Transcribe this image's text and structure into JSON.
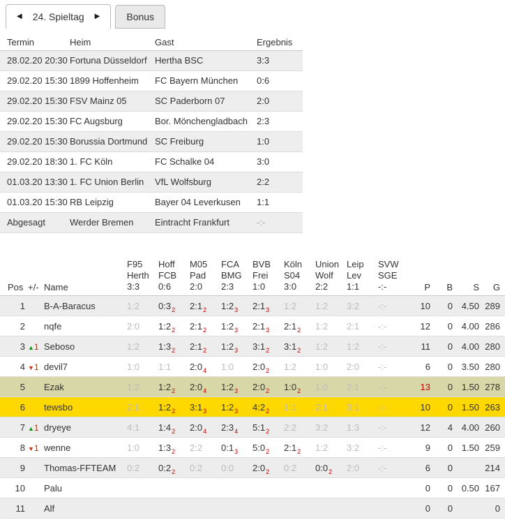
{
  "tab_bar": {
    "matchday_tab": {
      "label": "24. Spieltag",
      "prev_icon": "◀",
      "next_icon": "▶"
    },
    "bonus_tab": {
      "label": "Bonus"
    }
  },
  "fixtures": {
    "headers": {
      "termin": "Termin",
      "heim": "Heim",
      "gast": "Gast",
      "ergebnis": "Ergebnis"
    },
    "rows": [
      {
        "termin": "28.02.20 20:30",
        "heim": "Fortuna Düsseldorf",
        "gast": "Hertha BSC",
        "ergebnis": "3:3",
        "muted": ""
      },
      {
        "termin": "29.02.20 15:30",
        "heim": "1899 Hoffenheim",
        "gast": "FC Bayern München",
        "ergebnis": "0:6",
        "muted": ""
      },
      {
        "termin": "29.02.20 15:30",
        "heim": "FSV Mainz 05",
        "gast": "SC Paderborn 07",
        "ergebnis": "2:0",
        "muted": ""
      },
      {
        "termin": "29.02.20 15:30",
        "heim": "FC Augsburg",
        "gast": "Bor. Mönchengladbach",
        "ergebnis": "2:3",
        "muted": ""
      },
      {
        "termin": "29.02.20 15:30",
        "heim": "Borussia Dortmund",
        "gast": "SC Freiburg",
        "ergebnis": "1:0",
        "muted": ""
      },
      {
        "termin": "29.02.20 18:30",
        "heim": "1. FC Köln",
        "gast": "FC Schalke 04",
        "ergebnis": "3:0",
        "muted": ""
      },
      {
        "termin": "01.03.20 13:30",
        "heim": "1. FC Union Berlin",
        "gast": "VfL Wolfsburg",
        "ergebnis": "2:2",
        "muted": ""
      },
      {
        "termin": "01.03.20 15:30",
        "heim": "RB Leipzig",
        "gast": "Bayer 04 Leverkusen",
        "ergebnis": "1:1",
        "muted": ""
      },
      {
        "termin": "Abgesagt",
        "heim": "Werder Bremen",
        "gast": "Eintracht Frankfurt",
        "ergebnis": "-:-",
        "muted": "muted"
      }
    ]
  },
  "standings": {
    "headers": {
      "pos": "Pos",
      "change": "+/-",
      "name": "Name",
      "p": "P",
      "b": "B",
      "s": "S",
      "g": "G"
    },
    "match_headers": [
      {
        "home": "F95",
        "away": "Herth",
        "result": "3:3"
      },
      {
        "home": "Hoff",
        "away": "FCB",
        "result": "0:6"
      },
      {
        "home": "M05",
        "away": "Pad",
        "result": "2:0"
      },
      {
        "home": "FCA",
        "away": "BMG",
        "result": "2:3"
      },
      {
        "home": "BVB",
        "away": "Frei",
        "result": "1:0"
      },
      {
        "home": "Köln",
        "away": "S04",
        "result": "3:0"
      },
      {
        "home": "Union",
        "away": "Wolf",
        "result": "2:2"
      },
      {
        "home": "Leip",
        "away": "Lev",
        "result": "1:1"
      },
      {
        "home": "SVW",
        "away": "SGE",
        "result": "-:-"
      }
    ],
    "rows": [
      {
        "pos": "1",
        "change_icon": "",
        "change_dir": "",
        "change_val": "",
        "name": "B-A-Baracus",
        "hl": "",
        "p_cls": "",
        "tips": [
          {
            "score": "1:2",
            "points": "",
            "cls": ""
          },
          {
            "score": "0:3",
            "points": "2",
            "cls": "scored"
          },
          {
            "score": "2:1",
            "points": "2",
            "cls": "scored"
          },
          {
            "score": "1:2",
            "points": "3",
            "cls": "scored"
          },
          {
            "score": "2:1",
            "points": "3",
            "cls": "scored"
          },
          {
            "score": "1:2",
            "points": "",
            "cls": ""
          },
          {
            "score": "1:2",
            "points": "",
            "cls": ""
          },
          {
            "score": "3:2",
            "points": "",
            "cls": ""
          },
          {
            "score": "-:-",
            "points": "",
            "cls": ""
          }
        ],
        "p": "10",
        "b": "0",
        "s": "4.50",
        "g": "289"
      },
      {
        "pos": "2",
        "change_icon": "",
        "change_dir": "",
        "change_val": "",
        "name": "nqfe",
        "hl": "",
        "p_cls": "",
        "tips": [
          {
            "score": "2:0",
            "points": "",
            "cls": ""
          },
          {
            "score": "1:2",
            "points": "2",
            "cls": "scored"
          },
          {
            "score": "2:1",
            "points": "2",
            "cls": "scored"
          },
          {
            "score": "1:2",
            "points": "3",
            "cls": "scored"
          },
          {
            "score": "2:1",
            "points": "3",
            "cls": "scored"
          },
          {
            "score": "2:1",
            "points": "2",
            "cls": "scored"
          },
          {
            "score": "1:2",
            "points": "",
            "cls": ""
          },
          {
            "score": "2:1",
            "points": "",
            "cls": ""
          },
          {
            "score": "-:-",
            "points": "",
            "cls": ""
          }
        ],
        "p": "12",
        "b": "0",
        "s": "4.00",
        "g": "286"
      },
      {
        "pos": "3",
        "change_icon": "▲",
        "change_dir": "up",
        "change_val": "1",
        "name": "Seboso",
        "hl": "",
        "p_cls": "",
        "tips": [
          {
            "score": "1:2",
            "points": "",
            "cls": ""
          },
          {
            "score": "1:3",
            "points": "2",
            "cls": "scored"
          },
          {
            "score": "2:1",
            "points": "2",
            "cls": "scored"
          },
          {
            "score": "1:2",
            "points": "3",
            "cls": "scored"
          },
          {
            "score": "3:1",
            "points": "2",
            "cls": "scored"
          },
          {
            "score": "3:1",
            "points": "2",
            "cls": "scored"
          },
          {
            "score": "1:2",
            "points": "",
            "cls": ""
          },
          {
            "score": "1:2",
            "points": "",
            "cls": ""
          },
          {
            "score": "-:-",
            "points": "",
            "cls": ""
          }
        ],
        "p": "11",
        "b": "0",
        "s": "4.00",
        "g": "280"
      },
      {
        "pos": "4",
        "change_icon": "▼",
        "change_dir": "down",
        "change_val": "1",
        "name": "devil7",
        "hl": "",
        "p_cls": "",
        "tips": [
          {
            "score": "1:0",
            "points": "",
            "cls": ""
          },
          {
            "score": "1:1",
            "points": "",
            "cls": ""
          },
          {
            "score": "2:0",
            "points": "4",
            "cls": "scored"
          },
          {
            "score": "1:0",
            "points": "",
            "cls": ""
          },
          {
            "score": "2:0",
            "points": "2",
            "cls": "scored"
          },
          {
            "score": "1:2",
            "points": "",
            "cls": ""
          },
          {
            "score": "1:0",
            "points": "",
            "cls": ""
          },
          {
            "score": "2:0",
            "points": "",
            "cls": ""
          },
          {
            "score": "-:-",
            "points": "",
            "cls": ""
          }
        ],
        "p": "6",
        "b": "0",
        "s": "3.50",
        "g": "280"
      },
      {
        "pos": "5",
        "change_icon": "",
        "change_dir": "",
        "change_val": "",
        "name": "Ezak",
        "hl": "olive",
        "p_cls": "p-red",
        "tips": [
          {
            "score": "1:2",
            "points": "",
            "cls": ""
          },
          {
            "score": "1:2",
            "points": "2",
            "cls": "scored"
          },
          {
            "score": "2:0",
            "points": "4",
            "cls": "scored"
          },
          {
            "score": "1:2",
            "points": "3",
            "cls": "scored"
          },
          {
            "score": "2:0",
            "points": "2",
            "cls": "scored"
          },
          {
            "score": "1:0",
            "points": "2",
            "cls": "scored"
          },
          {
            "score": "1:0",
            "points": "",
            "cls": ""
          },
          {
            "score": "2:1",
            "points": "",
            "cls": ""
          },
          {
            "score": "-:-",
            "points": "",
            "cls": ""
          }
        ],
        "p": "13",
        "b": "0",
        "s": "1.50",
        "g": "278"
      },
      {
        "pos": "6",
        "change_icon": "",
        "change_dir": "",
        "change_val": "",
        "name": "tewsbo",
        "hl": "yellow",
        "p_cls": "",
        "tips": [
          {
            "score": "2:1",
            "points": "",
            "cls": ""
          },
          {
            "score": "1:2",
            "points": "2",
            "cls": "scored"
          },
          {
            "score": "3:1",
            "points": "3",
            "cls": "scored"
          },
          {
            "score": "1:2",
            "points": "3",
            "cls": "scored"
          },
          {
            "score": "4:2",
            "points": "2",
            "cls": "scored"
          },
          {
            "score": "1:1",
            "points": "",
            "cls": ""
          },
          {
            "score": "2:1",
            "points": "",
            "cls": ""
          },
          {
            "score": "3:1",
            "points": "",
            "cls": ""
          },
          {
            "score": "-:-",
            "points": "",
            "cls": ""
          }
        ],
        "p": "10",
        "b": "0",
        "s": "1.50",
        "g": "263"
      },
      {
        "pos": "7",
        "change_icon": "▲",
        "change_dir": "up",
        "change_val": "1",
        "name": "dryeye",
        "hl": "",
        "p_cls": "",
        "tips": [
          {
            "score": "4:1",
            "points": "",
            "cls": ""
          },
          {
            "score": "1:4",
            "points": "2",
            "cls": "scored"
          },
          {
            "score": "2:0",
            "points": "4",
            "cls": "scored"
          },
          {
            "score": "2:3",
            "points": "4",
            "cls": "scored"
          },
          {
            "score": "5:1",
            "points": "2",
            "cls": "scored"
          },
          {
            "score": "2:2",
            "points": "",
            "cls": ""
          },
          {
            "score": "3:2",
            "points": "",
            "cls": ""
          },
          {
            "score": "1:3",
            "points": "",
            "cls": ""
          },
          {
            "score": "-:-",
            "points": "",
            "cls": ""
          }
        ],
        "p": "12",
        "b": "4",
        "s": "4.00",
        "g": "260"
      },
      {
        "pos": "8",
        "change_icon": "▼",
        "change_dir": "down",
        "change_val": "1",
        "name": "wenne",
        "hl": "",
        "p_cls": "",
        "tips": [
          {
            "score": "1:0",
            "points": "",
            "cls": ""
          },
          {
            "score": "1:3",
            "points": "2",
            "cls": "scored"
          },
          {
            "score": "2:2",
            "points": "",
            "cls": ""
          },
          {
            "score": "0:1",
            "points": "3",
            "cls": "scored"
          },
          {
            "score": "5:0",
            "points": "2",
            "cls": "scored"
          },
          {
            "score": "2:1",
            "points": "2",
            "cls": "scored"
          },
          {
            "score": "1:2",
            "points": "",
            "cls": ""
          },
          {
            "score": "3:2",
            "points": "",
            "cls": ""
          },
          {
            "score": "-:-",
            "points": "",
            "cls": ""
          }
        ],
        "p": "9",
        "b": "0",
        "s": "1.50",
        "g": "259"
      },
      {
        "pos": "9",
        "change_icon": "",
        "change_dir": "",
        "change_val": "",
        "name": "Thomas-FFTEAM",
        "hl": "",
        "p_cls": "",
        "tips": [
          {
            "score": "0:2",
            "points": "",
            "cls": ""
          },
          {
            "score": "0:2",
            "points": "2",
            "cls": "scored"
          },
          {
            "score": "0:2",
            "points": "",
            "cls": ""
          },
          {
            "score": "0:0",
            "points": "",
            "cls": ""
          },
          {
            "score": "2:0",
            "points": "2",
            "cls": "scored"
          },
          {
            "score": "0:2",
            "points": "",
            "cls": ""
          },
          {
            "score": "0:0",
            "points": "2",
            "cls": "scored"
          },
          {
            "score": "2:0",
            "points": "",
            "cls": ""
          },
          {
            "score": "-:-",
            "points": "",
            "cls": ""
          }
        ],
        "p": "6",
        "b": "0",
        "s": "",
        "g": "214"
      },
      {
        "pos": "10",
        "change_icon": "",
        "change_dir": "",
        "change_val": "",
        "name": "Palu",
        "hl": "",
        "p_cls": "",
        "tips": [],
        "p": "0",
        "b": "0",
        "s": "0.50",
        "g": "167"
      },
      {
        "pos": "11",
        "change_icon": "",
        "change_dir": "",
        "change_val": "",
        "name": "Alf",
        "hl": "",
        "p_cls": "",
        "tips": [],
        "p": "0",
        "b": "0",
        "s": "",
        "g": "0"
      }
    ]
  },
  "colors": {
    "accent_red": "#cc0000",
    "highlight_olive": "#d7d7a8",
    "highlight_yellow": "#ffd800",
    "stripe_gray": "#ededed",
    "up_green": "#119411",
    "down_red": "#cc3311"
  }
}
